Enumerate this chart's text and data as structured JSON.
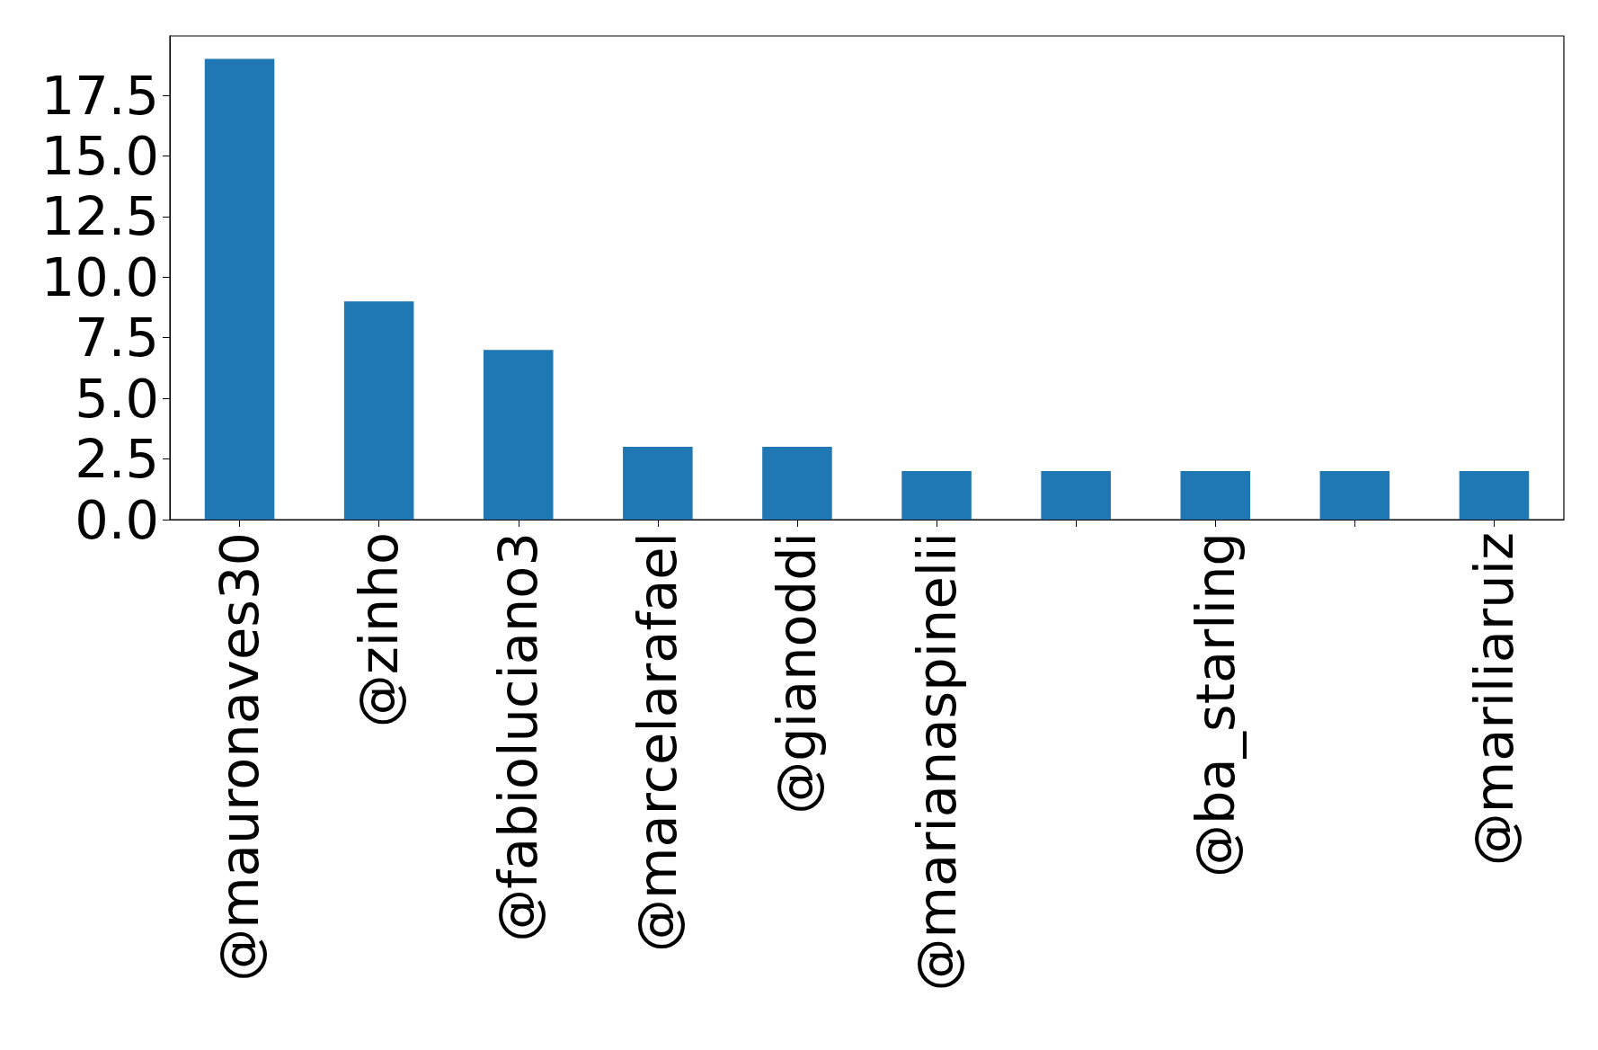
{
  "chart_data": {
    "type": "bar",
    "categories": [
      "@mauronaves30",
      "@zinho",
      "@fabioluciano3",
      "@marcelarafael",
      "@gianoddi",
      "@marianaspinelii",
      null,
      "@ba_starling",
      null,
      "@mariliaruiz"
    ],
    "values": [
      19,
      9,
      7,
      3,
      3,
      2,
      2,
      2,
      2,
      2
    ],
    "color": "#1f77b4",
    "ylim": [
      0,
      19.95
    ],
    "yticks": [
      {
        "value": 0,
        "label": "0.0"
      },
      {
        "value": 2.5,
        "label": "2.5"
      },
      {
        "value": 5,
        "label": "5.0"
      },
      {
        "value": 7.5,
        "label": "7.5"
      },
      {
        "value": 10,
        "label": "10.0"
      },
      {
        "value": 12.5,
        "label": "12.5"
      },
      {
        "value": 15,
        "label": "15.0"
      },
      {
        "value": 17.5,
        "label": "17.5"
      }
    ],
    "grid": false
  }
}
